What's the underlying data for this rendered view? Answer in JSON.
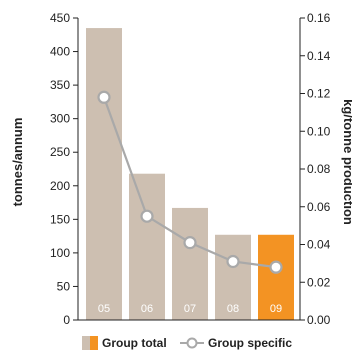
{
  "chart_data": {
    "type": "bar",
    "categories": [
      "05",
      "06",
      "07",
      "08",
      "09"
    ],
    "series": [
      {
        "name": "Group total",
        "type": "bar",
        "axis": "left",
        "values": [
          435,
          218,
          167,
          127,
          127
        ]
      },
      {
        "name": "Group specific",
        "type": "line",
        "axis": "right",
        "values": [
          0.118,
          0.055,
          0.041,
          0.031,
          0.028
        ]
      }
    ],
    "ylabel": "tonnes/annum",
    "y2label": "kg/tonne production",
    "ylim": [
      0,
      450
    ],
    "y2lim": [
      0,
      0.16
    ],
    "yticks": [
      "0",
      "50",
      "100",
      "150",
      "200",
      "250",
      "300",
      "350",
      "400",
      "450"
    ],
    "y2ticks": [
      "0.00",
      "0.02",
      "0.04",
      "0.06",
      "0.08",
      "0.10",
      "0.12",
      "0.14",
      "0.16"
    ],
    "grid": false,
    "legend_position": "bottom",
    "colors": {
      "bar": "#cdbfb1",
      "bar_highlight": "#f39323",
      "line": "#a9a9a9",
      "axis": "#222222"
    },
    "highlight_index": 4
  }
}
